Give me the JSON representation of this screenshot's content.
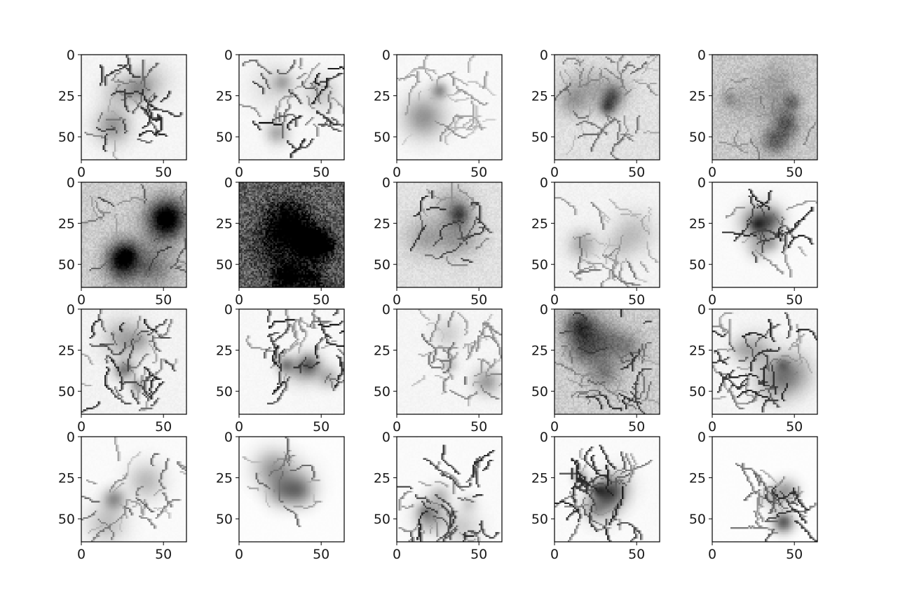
{
  "chart_data": {
    "type": "heatmap",
    "layout": {
      "rows": 4,
      "cols": 5
    },
    "colormap": "gray_r",
    "image_size": [
      64,
      64
    ],
    "axes": {
      "xlim": [
        0,
        64
      ],
      "ylim": [
        64,
        0
      ],
      "x_ticks": [
        0,
        50
      ],
      "y_ticks": [
        0,
        25,
        50
      ],
      "x_tick_labels": [
        "0",
        "50"
      ],
      "y_tick_labels": [
        "0",
        "25",
        "50"
      ],
      "grid": false
    },
    "panels": [
      {
        "row": 0,
        "col": 0,
        "background": 0.04,
        "ink": 0.85,
        "strokes": 40,
        "blobs": 4,
        "cx": 30,
        "cy": 32,
        "spread": 20
      },
      {
        "row": 0,
        "col": 1,
        "background": 0.03,
        "ink": 0.9,
        "strokes": 38,
        "blobs": 4,
        "cx": 34,
        "cy": 30,
        "spread": 22
      },
      {
        "row": 0,
        "col": 2,
        "background": 0.03,
        "ink": 0.45,
        "strokes": 30,
        "blobs": 2,
        "cx": 30,
        "cy": 28,
        "spread": 22
      },
      {
        "row": 0,
        "col": 3,
        "background": 0.12,
        "ink": 0.6,
        "strokes": 55,
        "blobs": 6,
        "cx": 30,
        "cy": 26,
        "spread": 26
      },
      {
        "row": 0,
        "col": 4,
        "background": 0.22,
        "ink": 0.55,
        "strokes": 30,
        "blobs": 8,
        "cx": 30,
        "cy": 35,
        "spread": 26
      },
      {
        "row": 1,
        "col": 0,
        "background": 0.2,
        "ink": 0.75,
        "strokes": 35,
        "blobs": 8,
        "cx": 38,
        "cy": 35,
        "spread": 25
      },
      {
        "row": 1,
        "col": 1,
        "background": 0.62,
        "ink": 0.85,
        "strokes": 10,
        "blobs": 10,
        "cx": 32,
        "cy": 40,
        "spread": 28
      },
      {
        "row": 1,
        "col": 2,
        "background": 0.12,
        "ink": 0.8,
        "strokes": 30,
        "blobs": 4,
        "cx": 30,
        "cy": 26,
        "spread": 20
      },
      {
        "row": 1,
        "col": 3,
        "background": 0.05,
        "ink": 0.55,
        "strokes": 35,
        "blobs": 3,
        "cx": 34,
        "cy": 40,
        "spread": 24
      },
      {
        "row": 1,
        "col": 4,
        "background": 0.02,
        "ink": 0.9,
        "strokes": 35,
        "blobs": 8,
        "cx": 36,
        "cy": 28,
        "spread": 16
      },
      {
        "row": 2,
        "col": 0,
        "background": 0.05,
        "ink": 0.85,
        "strokes": 45,
        "blobs": 5,
        "cx": 28,
        "cy": 36,
        "spread": 24
      },
      {
        "row": 2,
        "col": 1,
        "background": 0.03,
        "ink": 0.9,
        "strokes": 42,
        "blobs": 5,
        "cx": 38,
        "cy": 26,
        "spread": 22
      },
      {
        "row": 2,
        "col": 2,
        "background": 0.04,
        "ink": 0.55,
        "strokes": 38,
        "blobs": 3,
        "cx": 40,
        "cy": 30,
        "spread": 24
      },
      {
        "row": 2,
        "col": 3,
        "background": 0.2,
        "ink": 0.85,
        "strokes": 55,
        "blobs": 6,
        "cx": 30,
        "cy": 30,
        "spread": 26
      },
      {
        "row": 2,
        "col": 4,
        "background": 0.04,
        "ink": 0.85,
        "strokes": 50,
        "blobs": 5,
        "cx": 30,
        "cy": 36,
        "spread": 22
      },
      {
        "row": 3,
        "col": 0,
        "background": 0.02,
        "ink": 0.6,
        "strokes": 30,
        "blobs": 3,
        "cx": 34,
        "cy": 34,
        "spread": 26
      },
      {
        "row": 3,
        "col": 1,
        "background": 0.01,
        "ink": 0.6,
        "strokes": 30,
        "blobs": 4,
        "cx": 26,
        "cy": 28,
        "spread": 14
      },
      {
        "row": 3,
        "col": 2,
        "background": 0.02,
        "ink": 0.85,
        "strokes": 45,
        "blobs": 5,
        "cx": 30,
        "cy": 40,
        "spread": 22
      },
      {
        "row": 3,
        "col": 3,
        "background": 0.02,
        "ink": 0.9,
        "strokes": 60,
        "blobs": 6,
        "cx": 28,
        "cy": 36,
        "spread": 18
      },
      {
        "row": 3,
        "col": 4,
        "background": 0.01,
        "ink": 0.85,
        "strokes": 35,
        "blobs": 4,
        "cx": 40,
        "cy": 42,
        "spread": 14
      }
    ]
  }
}
